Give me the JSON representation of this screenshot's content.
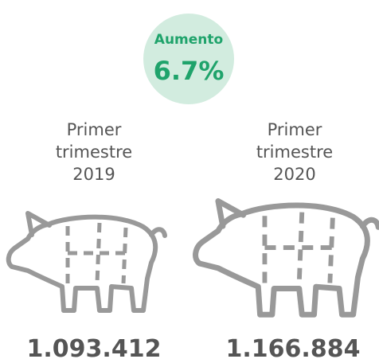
{
  "badge": {
    "label": "Aumento",
    "value": "6.7%"
  },
  "items": [
    {
      "label": [
        "Primer",
        "trimestre",
        "2019"
      ],
      "value": "1.093.412"
    },
    {
      "label": [
        "Primer",
        "trimestre",
        "2020"
      ],
      "value": "1.166.884"
    }
  ]
}
